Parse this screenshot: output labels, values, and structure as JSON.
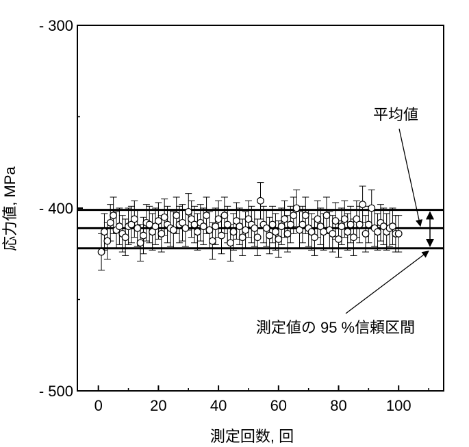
{
  "chart_data": {
    "type": "scatter",
    "xlabel": "測定回数, 回",
    "ylabel": "応力値, MPa",
    "xlim": [
      -7,
      115
    ],
    "ylim": [
      -500,
      -300
    ],
    "x_ticks": [
      0,
      20,
      40,
      60,
      80,
      100
    ],
    "y_ticks": [
      -300,
      -400,
      -500
    ],
    "x_tick_labels": [
      "0",
      "20",
      "40",
      "60",
      "80",
      "100"
    ],
    "y_tick_labels": [
      "- 300",
      "- 400",
      "- 500"
    ],
    "grid": false,
    "mean": -411,
    "ci_upper": -401,
    "ci_lower": -422,
    "error_half_width": 10,
    "annotations": {
      "mean_label": "平均値",
      "ci_label": "測定値の 95 %信頼区間"
    },
    "x": [
      1,
      2,
      3,
      4,
      5,
      6,
      7,
      8,
      9,
      10,
      11,
      12,
      13,
      14,
      15,
      16,
      17,
      18,
      19,
      20,
      21,
      22,
      23,
      24,
      25,
      26,
      27,
      28,
      29,
      30,
      31,
      32,
      33,
      34,
      35,
      36,
      37,
      38,
      39,
      40,
      41,
      42,
      43,
      44,
      45,
      46,
      47,
      48,
      49,
      50,
      51,
      52,
      53,
      54,
      55,
      56,
      57,
      58,
      59,
      60,
      61,
      62,
      63,
      64,
      65,
      66,
      67,
      68,
      69,
      70,
      71,
      72,
      73,
      74,
      75,
      76,
      77,
      78,
      79,
      80,
      81,
      82,
      83,
      84,
      85,
      86,
      87,
      88,
      89,
      90,
      91,
      92,
      93,
      94,
      95,
      96,
      97,
      98,
      99,
      100
    ],
    "y": [
      -424,
      -413,
      -418,
      -408,
      -404,
      -412,
      -410,
      -414,
      -416,
      -410,
      -409,
      -406,
      -411,
      -419,
      -415,
      -408,
      -409,
      -413,
      -410,
      -407,
      -414,
      -405,
      -409,
      -411,
      -412,
      -404,
      -409,
      -408,
      -411,
      -402,
      -406,
      -409,
      -413,
      -408,
      -410,
      -404,
      -412,
      -418,
      -410,
      -406,
      -415,
      -404,
      -409,
      -419,
      -413,
      -407,
      -410,
      -416,
      -412,
      -406,
      -409,
      -411,
      -416,
      -396,
      -409,
      -411,
      -415,
      -409,
      -413,
      -417,
      -410,
      -406,
      -414,
      -409,
      -404,
      -400,
      -412,
      -409,
      -404,
      -411,
      -413,
      -416,
      -406,
      -410,
      -413,
      -404,
      -412,
      -414,
      -407,
      -417,
      -410,
      -406,
      -413,
      -409,
      -416,
      -406,
      -409,
      -398,
      -414,
      -409,
      -400,
      -411,
      -413,
      -408,
      -410,
      -413,
      -411,
      -410,
      -414,
      -414
    ]
  }
}
